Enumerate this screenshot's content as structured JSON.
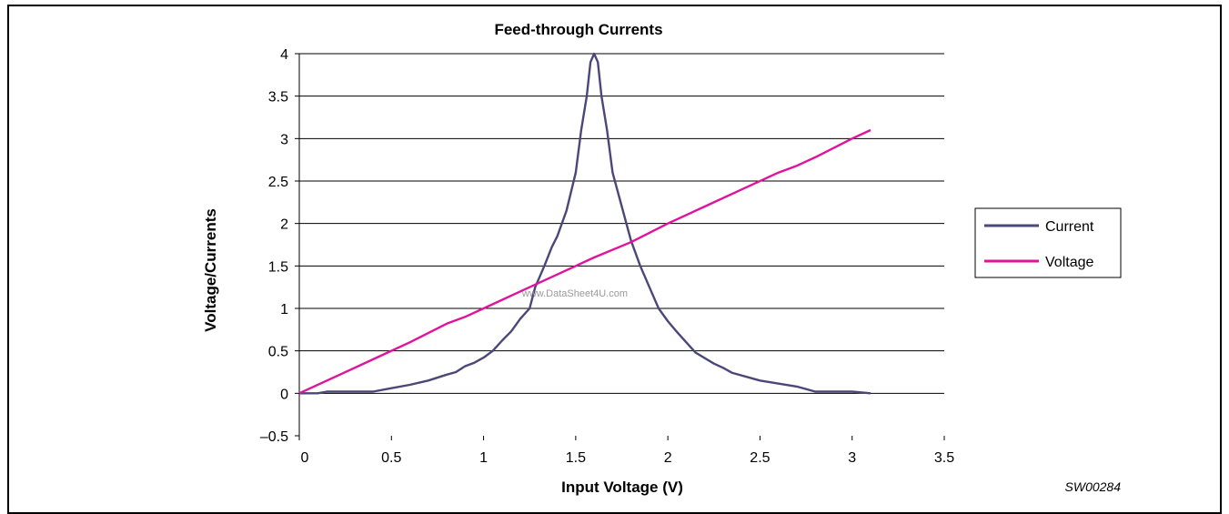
{
  "chart_data": {
    "type": "line",
    "title": "Feed-through Currents",
    "xlabel": "Input Voltage (V)",
    "ylabel": "Voltage/Currents",
    "xlim": [
      0,
      3.5
    ],
    "ylim": [
      -0.5,
      4
    ],
    "x_ticks": [
      "0",
      "0.5",
      "1",
      "1.5",
      "2",
      "2.5",
      "3",
      "3.5"
    ],
    "y_ticks": [
      "–0.5",
      "0",
      "0.5",
      "1",
      "1.5",
      "2",
      "2.5",
      "3",
      "3.5",
      "4"
    ],
    "grid": "horizontal",
    "legend_position": "right",
    "series": [
      {
        "name": "Current",
        "color": "#4b4779",
        "points": [
          [
            0.0,
            0.0
          ],
          [
            0.1,
            0.0
          ],
          [
            0.15,
            0.02
          ],
          [
            0.25,
            0.02
          ],
          [
            0.4,
            0.02
          ],
          [
            0.5,
            0.06
          ],
          [
            0.6,
            0.1
          ],
          [
            0.7,
            0.15
          ],
          [
            0.8,
            0.22
          ],
          [
            0.85,
            0.25
          ],
          [
            0.9,
            0.32
          ],
          [
            0.95,
            0.36
          ],
          [
            1.0,
            0.42
          ],
          [
            1.05,
            0.5
          ],
          [
            1.1,
            0.62
          ],
          [
            1.15,
            0.73
          ],
          [
            1.2,
            0.88
          ],
          [
            1.25,
            1.0
          ],
          [
            1.28,
            1.25
          ],
          [
            1.33,
            1.5
          ],
          [
            1.37,
            1.72
          ],
          [
            1.4,
            1.85
          ],
          [
            1.45,
            2.15
          ],
          [
            1.5,
            2.6
          ],
          [
            1.53,
            3.1
          ],
          [
            1.56,
            3.5
          ],
          [
            1.58,
            3.9
          ],
          [
            1.6,
            4.0
          ],
          [
            1.62,
            3.9
          ],
          [
            1.64,
            3.5
          ],
          [
            1.67,
            3.1
          ],
          [
            1.7,
            2.6
          ],
          [
            1.75,
            2.2
          ],
          [
            1.8,
            1.8
          ],
          [
            1.85,
            1.5
          ],
          [
            1.9,
            1.25
          ],
          [
            1.95,
            1.0
          ],
          [
            2.0,
            0.85
          ],
          [
            2.05,
            0.72
          ],
          [
            2.1,
            0.6
          ],
          [
            2.15,
            0.48
          ],
          [
            2.25,
            0.35
          ],
          [
            2.3,
            0.3
          ],
          [
            2.35,
            0.24
          ],
          [
            2.5,
            0.15
          ],
          [
            2.7,
            0.08
          ],
          [
            2.8,
            0.02
          ],
          [
            3.0,
            0.02
          ],
          [
            3.1,
            0.0
          ]
        ]
      },
      {
        "name": "Voltage",
        "color": "#e0139a",
        "points": [
          [
            0.0,
            0.0
          ],
          [
            0.2,
            0.2
          ],
          [
            0.4,
            0.4
          ],
          [
            0.6,
            0.6
          ],
          [
            0.8,
            0.82
          ],
          [
            0.9,
            0.9
          ],
          [
            1.0,
            1.0
          ],
          [
            1.2,
            1.2
          ],
          [
            1.4,
            1.4
          ],
          [
            1.6,
            1.6
          ],
          [
            1.8,
            1.78
          ],
          [
            2.0,
            2.0
          ],
          [
            2.2,
            2.2
          ],
          [
            2.4,
            2.4
          ],
          [
            2.6,
            2.6
          ],
          [
            2.7,
            2.68
          ],
          [
            2.8,
            2.78
          ],
          [
            3.0,
            3.0
          ],
          [
            3.1,
            3.1
          ]
        ]
      }
    ]
  },
  "watermark": "www.DataSheet4U.com",
  "figure_code": "SW00284"
}
